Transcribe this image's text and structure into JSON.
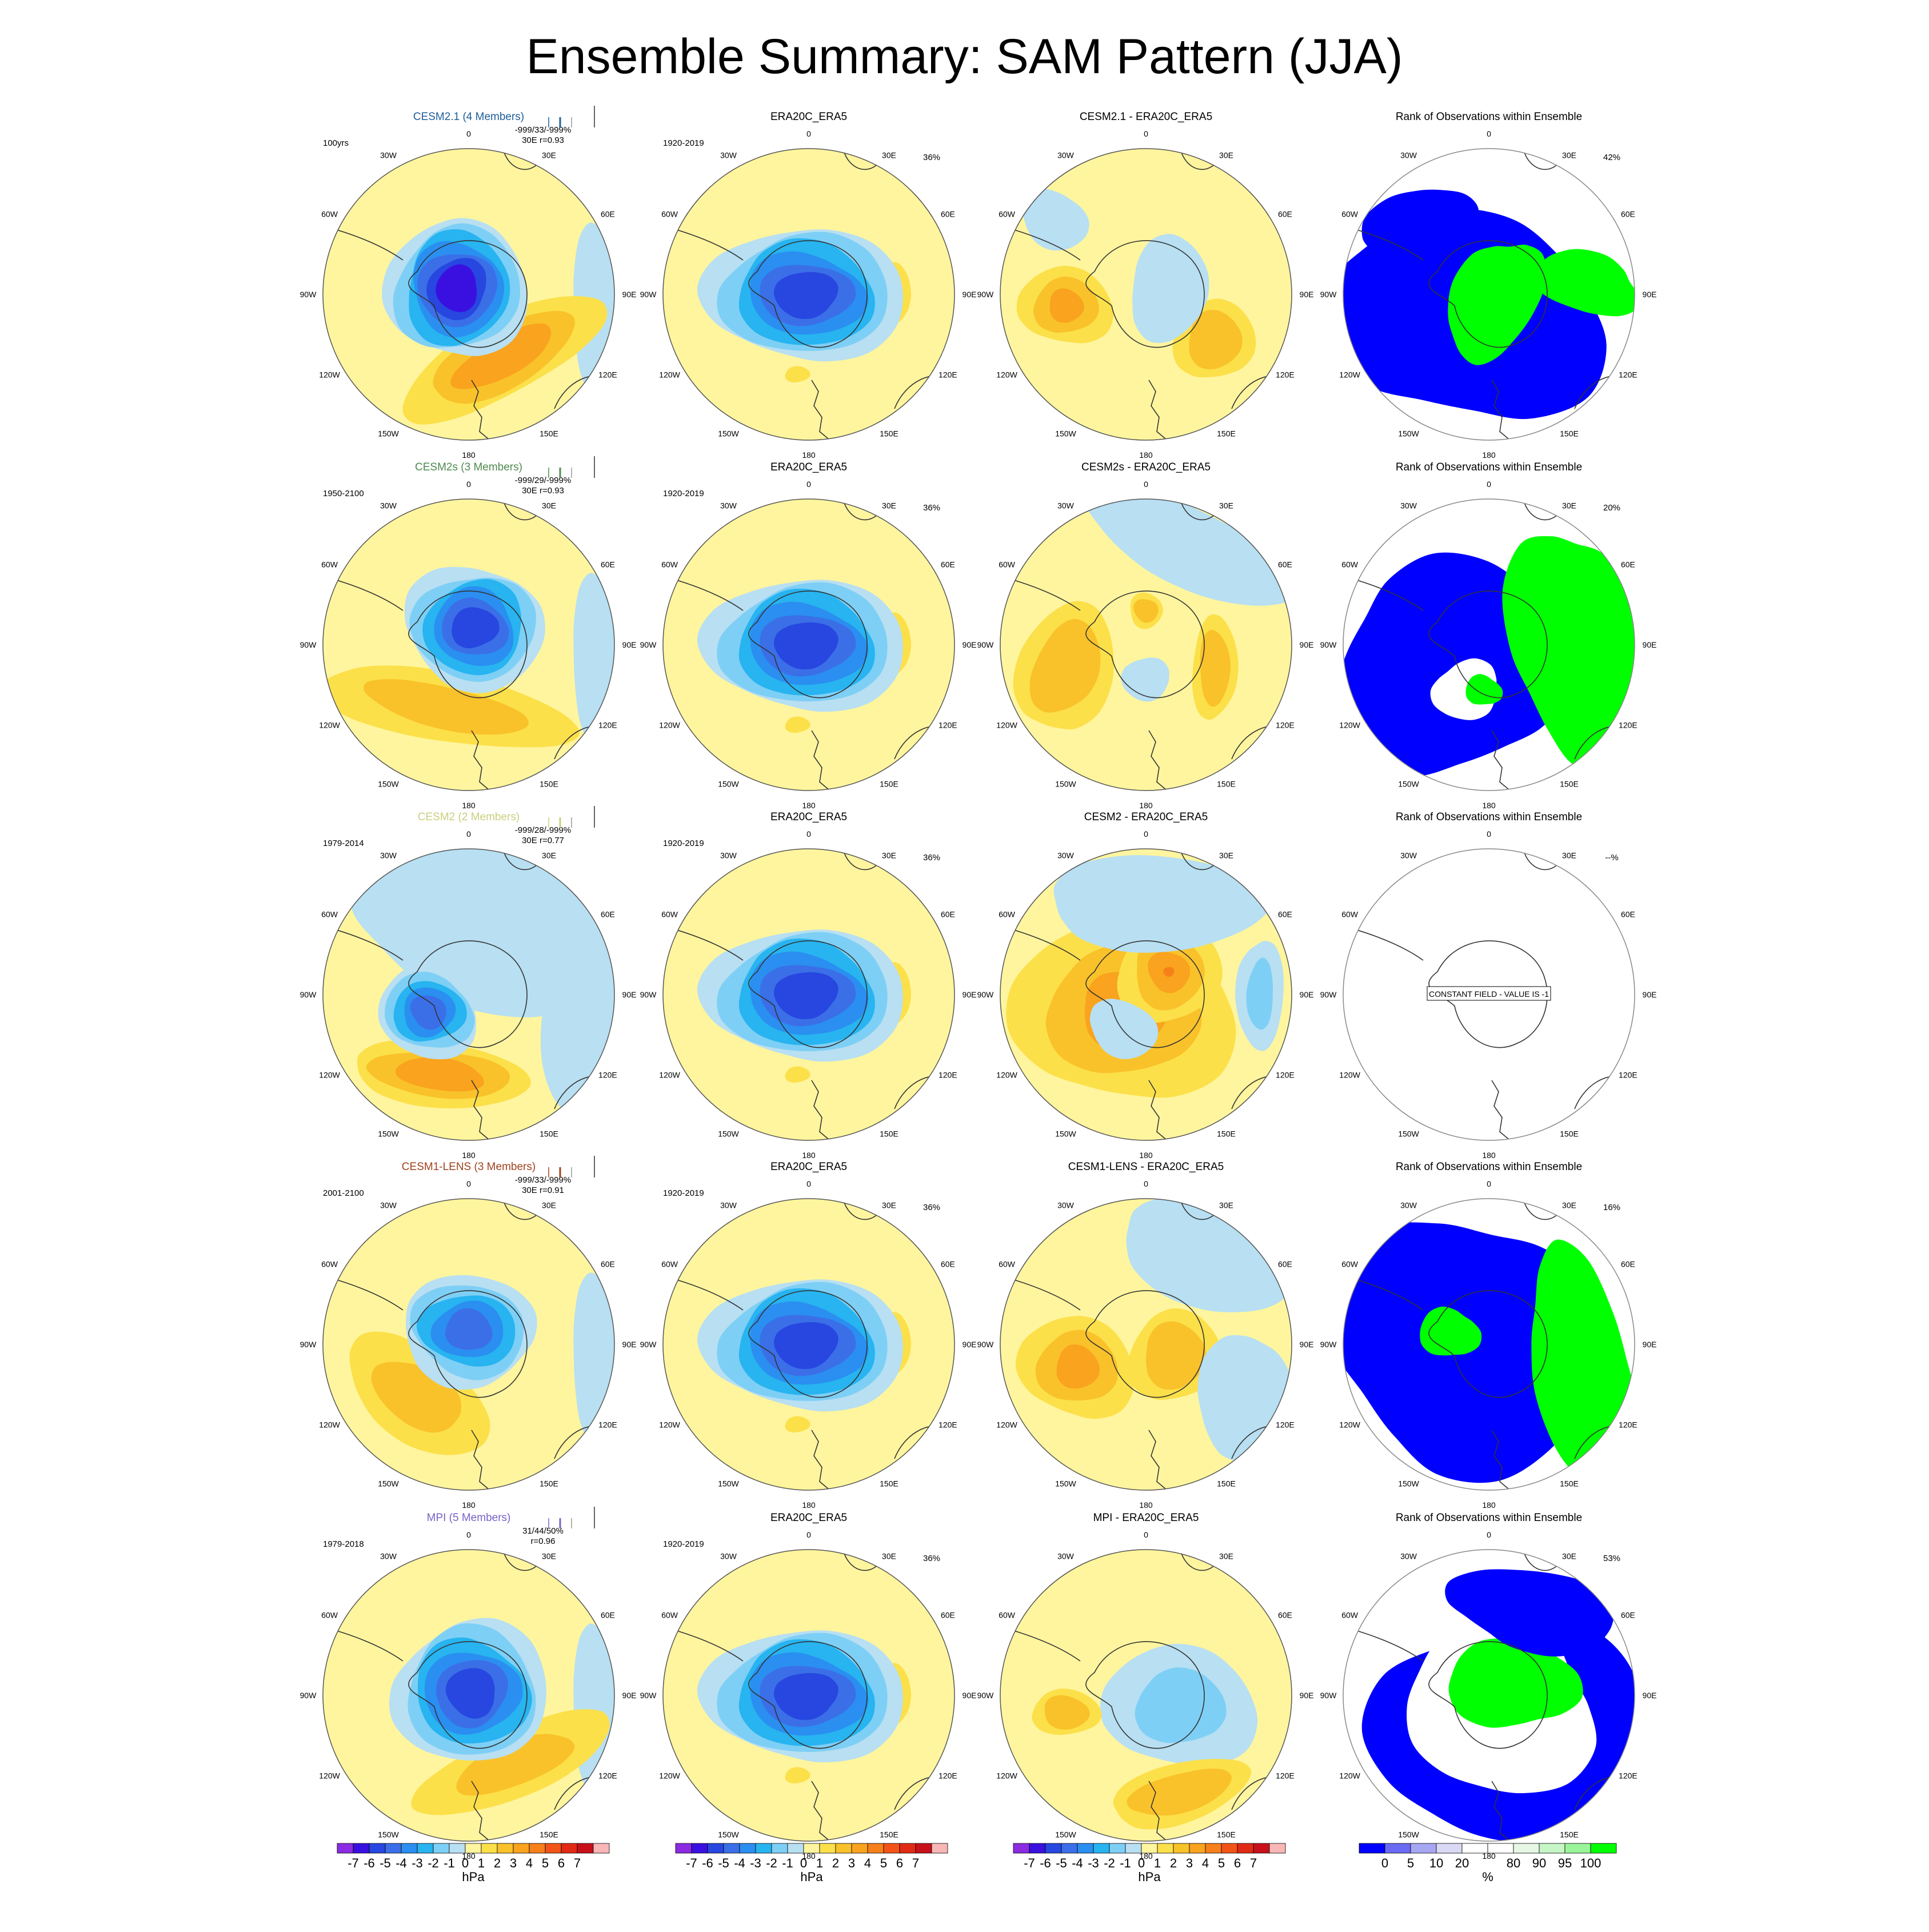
{
  "title": "Ensemble Summary: SAM Pattern (JJA)",
  "colors": {
    "neg": [
      "#8b2be2",
      "#3a10e0",
      "#2747e0",
      "#3b6fe8",
      "#2a8ff0",
      "#27b4f0",
      "#7ecff5",
      "#b8dff2"
    ],
    "pos": [
      "#fff59e",
      "#fce04a",
      "#f9c22a",
      "#f9a31e",
      "#f7801a",
      "#f25418",
      "#e12a14",
      "#c8101a",
      "#f8b6b6"
    ],
    "land": "#333333",
    "rank_low": "#0000ff",
    "rank_high": "#00ff00"
  },
  "colorbars": {
    "hpa": {
      "labels": [
        "-7",
        "-6",
        "-5",
        "-4",
        "-3",
        "-2",
        "-1",
        "0",
        "1",
        "2",
        "3",
        "4",
        "5",
        "6",
        "7"
      ],
      "unit": "hPa"
    },
    "rank": {
      "colors": [
        "#0000ff",
        "#6a6af2",
        "#a6a6f2",
        "#d9d9f5",
        "#ffffff",
        "#ffffff",
        "#e6f7e6",
        "#c6f5c6",
        "#9af59a",
        "#00ff00"
      ],
      "labels": [
        "0",
        "5",
        "10",
        "20",
        "80",
        "90",
        "95",
        "100"
      ],
      "unit": "%"
    }
  },
  "lon_labels": [
    "0",
    "30E",
    "60E",
    "90E",
    "120E",
    "150E",
    "180",
    "150W",
    "120W",
    "90W",
    "60W",
    "30W"
  ],
  "rows": [
    {
      "model": "CESM2.1 (4 Members)",
      "model_color": "#1f5f99",
      "period": "100yrs",
      "stats": "-999/33/-999%",
      "corr": "30E r=0.93",
      "diff_title": "CESM2.1 - ERA20C_ERA5",
      "obs_title": "ERA20C_ERA5",
      "obs_period": "1920-2019",
      "obs_pct": "36%",
      "rank_title": "Rank of Observations within Ensemble",
      "rank_pct": "42%",
      "rank_note": ""
    },
    {
      "model": "CESM2s (3 Members)",
      "model_color": "#4f8a4f",
      "period": "1950-2100",
      "stats": "-999/29/-999%",
      "corr": "30E r=0.93",
      "diff_title": "CESM2s - ERA20C_ERA5",
      "obs_title": "ERA20C_ERA5",
      "obs_period": "1920-2019",
      "obs_pct": "36%",
      "rank_title": "Rank of Observations within Ensemble",
      "rank_pct": "20%",
      "rank_note": ""
    },
    {
      "model": "CESM2 (2 Members)",
      "model_color": "#c9cf7e",
      "period": "1979-2014",
      "stats": "-999/28/-999%",
      "corr": "30E r=0.77",
      "diff_title": "CESM2 - ERA20C_ERA5",
      "obs_title": "ERA20C_ERA5",
      "obs_period": "1920-2019",
      "obs_pct": "36%",
      "rank_title": "Rank of Observations within Ensemble",
      "rank_pct": "--%",
      "rank_note": "CONSTANT FIELD - VALUE IS -1"
    },
    {
      "model": "CESM1-LENS (3 Members)",
      "model_color": "#a0421e",
      "period": "2001-2100",
      "stats": "-999/33/-999%",
      "corr": "30E r=0.91",
      "diff_title": "CESM1-LENS - ERA20C_ERA5",
      "obs_title": "ERA20C_ERA5",
      "obs_period": "1920-2019",
      "obs_pct": "36%",
      "rank_title": "Rank of Observations within Ensemble",
      "rank_pct": "16%",
      "rank_note": ""
    },
    {
      "model": "MPI (5 Members)",
      "model_color": "#7a62c8",
      "period": "1979-2018",
      "stats": "31/44/50%",
      "corr": "r=0.96",
      "diff_title": "MPI - ERA20C_ERA5",
      "obs_title": "ERA20C_ERA5",
      "obs_period": "1920-2019",
      "obs_pct": "36%",
      "rank_title": "Rank of Observations within Ensemble",
      "rank_pct": "53%",
      "rank_note": ""
    }
  ],
  "chart_data": {
    "type": "heatmap",
    "projection": "south polar stereographic",
    "variable": "SAM Pattern (JJA) sea level pressure regression",
    "units": "hPa",
    "levels": [
      -7,
      -6,
      -5,
      -4,
      -3,
      -2,
      -1,
      0,
      1,
      2,
      3,
      4,
      5,
      6,
      7
    ],
    "rank_levels_pct": [
      0,
      5,
      10,
      20,
      80,
      90,
      95,
      100
    ],
    "panels_per_row": [
      "model ensemble mean",
      "ERA20C_ERA5",
      "model minus ERA20C_ERA5",
      "Rank of Observations within Ensemble"
    ]
  }
}
